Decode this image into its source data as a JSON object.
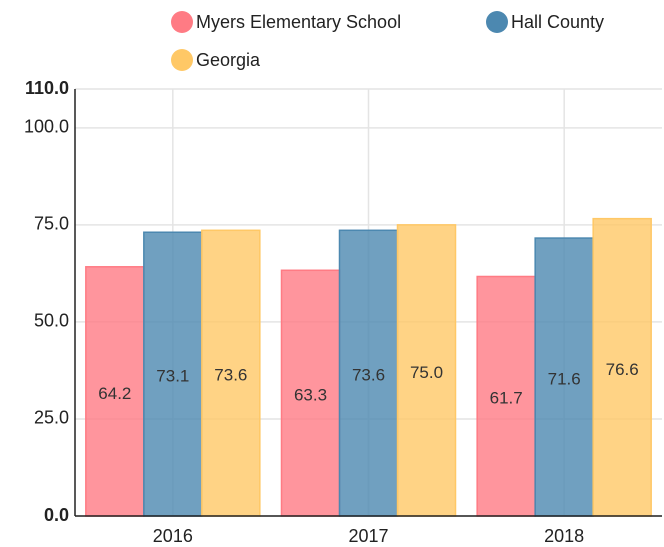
{
  "chart_data": {
    "type": "bar",
    "categories": [
      "2016",
      "2017",
      "2018"
    ],
    "series": [
      {
        "name": "Myers Elementary School",
        "color": "#ff7b84",
        "values": [
          64.2,
          63.3,
          61.7
        ],
        "value_labels": [
          "64.2",
          "63.3",
          "61.7"
        ]
      },
      {
        "name": "Hall County",
        "color": "#4c88b0",
        "values": [
          73.1,
          73.6,
          71.6
        ],
        "value_labels": [
          "73.1",
          "73.6",
          "71.6"
        ]
      },
      {
        "name": "Georgia",
        "color": "#ffc866",
        "values": [
          73.6,
          75.0,
          76.6
        ],
        "value_labels": [
          "73.6",
          "75.0",
          "76.6"
        ]
      }
    ],
    "ylim": [
      0,
      110
    ],
    "yticks": [
      {
        "value": 0,
        "label": "0.0"
      },
      {
        "value": 25,
        "label": "25.0"
      },
      {
        "value": 50,
        "label": "50.0"
      },
      {
        "value": 75,
        "label": "75.0"
      },
      {
        "value": 100,
        "label": "100.0"
      },
      {
        "value": 110,
        "label": "110.0"
      }
    ],
    "grid": true
  }
}
